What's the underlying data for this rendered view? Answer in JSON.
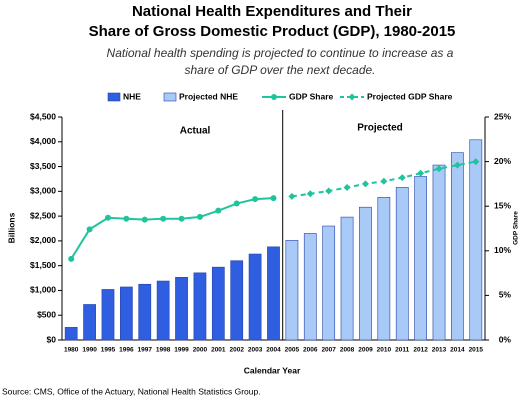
{
  "chart_data": {
    "type": "bar",
    "title": [
      "National Health Expenditures and Their",
      "Share of Gross Domestic Product (GDP), 1980-2015"
    ],
    "subtitle": [
      "National health spending is projected to continue to increase as a",
      "share of GDP over the next decade."
    ],
    "categories": [
      "1980",
      "1990",
      "1995",
      "1996",
      "1997",
      "1998",
      "1999",
      "2000",
      "2001",
      "2002",
      "2003",
      "2004",
      "2005",
      "2006",
      "2007",
      "2008",
      "2009",
      "2010",
      "2011",
      "2012",
      "2013",
      "2014",
      "2015"
    ],
    "series": [
      {
        "name": "NHE",
        "kind": "bar",
        "color": "#2f5fe0",
        "values": [
          255,
          717,
          1020,
          1070,
          1125,
          1190,
          1265,
          1355,
          1470,
          1600,
          1735,
          1880,
          null,
          null,
          null,
          null,
          null,
          null,
          null,
          null,
          null,
          null,
          null
        ]
      },
      {
        "name": "Projected NHE",
        "kind": "bar",
        "color": "#a9c9f7",
        "values": [
          null,
          null,
          null,
          null,
          null,
          null,
          null,
          null,
          null,
          null,
          null,
          null,
          2010,
          2150,
          2300,
          2480,
          2680,
          2880,
          3080,
          3300,
          3530,
          3780,
          4040
        ]
      },
      {
        "name": "GDP Share",
        "kind": "line",
        "axis": "y2",
        "color": "#1fc49c",
        "marker": "circle",
        "dashed": false,
        "values": [
          9.1,
          12.4,
          13.7,
          13.6,
          13.5,
          13.6,
          13.6,
          13.8,
          14.5,
          15.3,
          15.8,
          15.9,
          null,
          null,
          null,
          null,
          null,
          null,
          null,
          null,
          null,
          null,
          null
        ]
      },
      {
        "name": "Projected GDP Share",
        "kind": "line",
        "axis": "y2",
        "color": "#1fc49c",
        "marker": "diamond",
        "dashed": true,
        "values": [
          null,
          null,
          null,
          null,
          null,
          null,
          null,
          null,
          null,
          null,
          null,
          null,
          16.1,
          16.4,
          16.7,
          17.1,
          17.5,
          17.8,
          18.2,
          18.7,
          19.2,
          19.6,
          20.0
        ]
      }
    ],
    "ylim": [
      0,
      4500
    ],
    "yticks": [
      {
        "value": 0,
        "label": "$0"
      },
      {
        "value": 500,
        "label": "$500"
      },
      {
        "value": 1000,
        "label": "$1,000"
      },
      {
        "value": 1500,
        "label": "$1,500"
      },
      {
        "value": 2000,
        "label": "$2,000"
      },
      {
        "value": 2500,
        "label": "$2,500"
      },
      {
        "value": 3000,
        "label": "$3,000"
      },
      {
        "value": 3500,
        "label": "$3,500"
      },
      {
        "value": 4000,
        "label": "$4,000"
      },
      {
        "value": 4500,
        "label": "$4,500"
      }
    ],
    "y2lim": [
      0,
      25
    ],
    "y2ticks": [
      {
        "value": 0,
        "label": "0%"
      },
      {
        "value": 5,
        "label": "5%"
      },
      {
        "value": 10,
        "label": "10%"
      },
      {
        "value": 15,
        "label": "15%"
      },
      {
        "value": 20,
        "label": "20%"
      },
      {
        "value": 25,
        "label": "25%"
      }
    ],
    "ylabel": "Billions",
    "y2label": "GDP Share",
    "xlabel": "Calendar Year",
    "annotations": [
      "Actual",
      "Projected"
    ],
    "source": "Source: CMS, Office of the Actuary, National Health Statistics Group."
  }
}
